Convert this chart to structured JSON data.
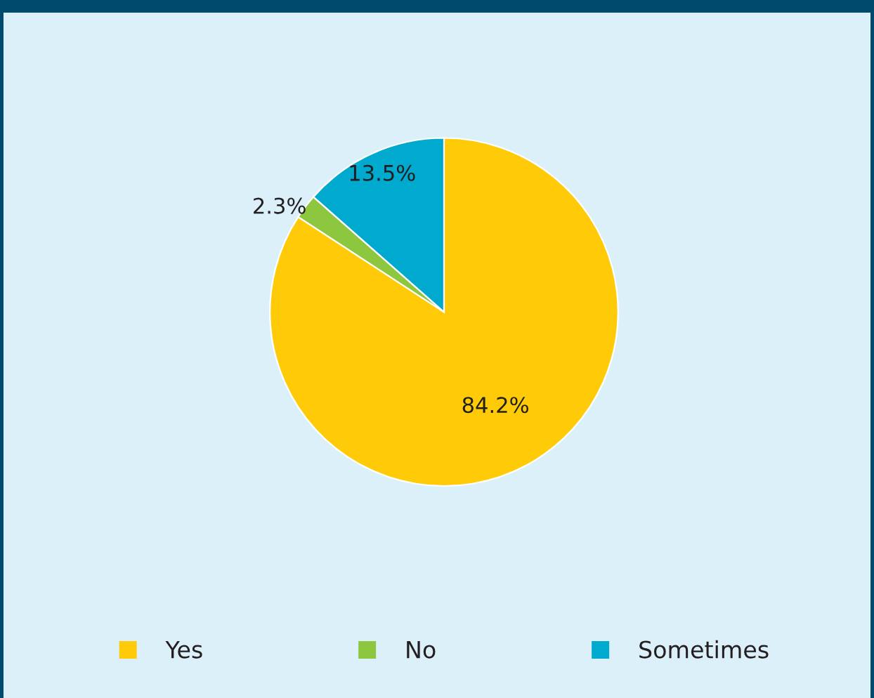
{
  "chart_data": {
    "type": "pie",
    "categories": [
      "Yes",
      "No",
      "Sometimes"
    ],
    "values": [
      84.2,
      2.3,
      13.5
    ],
    "colors": [
      "#ffcb08",
      "#8dc63f",
      "#00a9ce"
    ],
    "value_labels": [
      "84.2%",
      "2.3%",
      "13.5%"
    ],
    "legend": "bottom"
  }
}
